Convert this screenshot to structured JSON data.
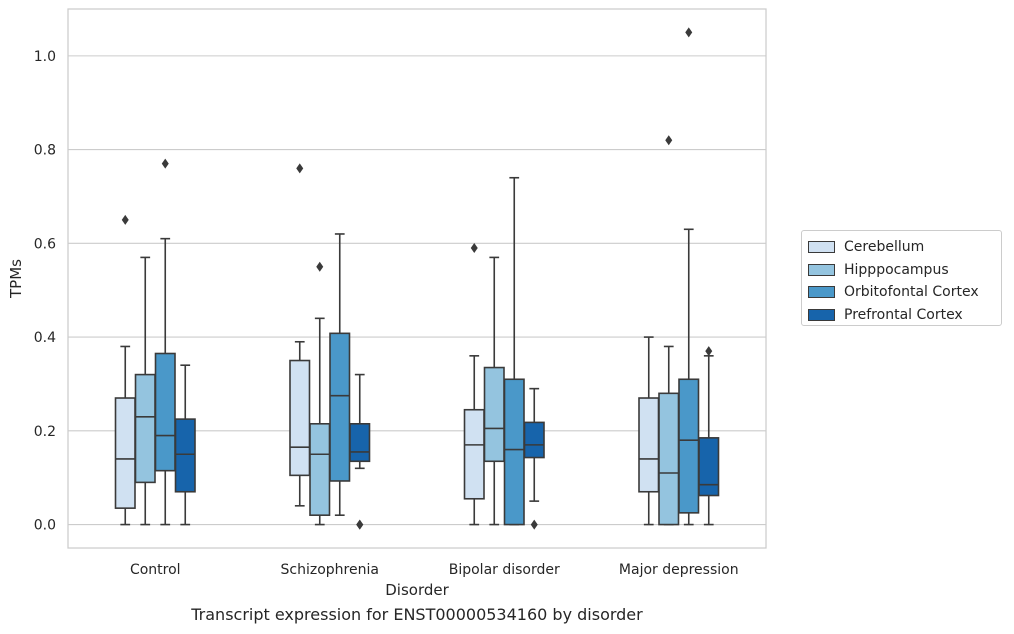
{
  "caption": "Transcript expression for ENST00000534160 by disorder",
  "colors": {
    "Cerebellum": "#d0e1f2",
    "Hipppocampus": "#94c4df",
    "Orbitofontal Cortex": "#4a98c9",
    "Prefrontal Cortex": "#1764ab"
  },
  "chart_data": {
    "type": "box",
    "title": "",
    "xlabel": "Disorder",
    "ylabel": "TPMs",
    "ylim": [
      -0.05,
      1.1
    ],
    "yticks": [
      0.0,
      0.2,
      0.4,
      0.6,
      0.8,
      1.0
    ],
    "ytick_labels": [
      "0.0",
      "0.2",
      "0.4",
      "0.6",
      "0.8",
      "1.0"
    ],
    "grid": "horizontal",
    "legend_position": "right",
    "categories": [
      "Control",
      "Schizophrenia",
      "Bipolar disorder",
      "Major depression"
    ],
    "series": [
      {
        "name": "Cerebellum",
        "boxes": [
          {
            "whislo": 0.0,
            "q1": 0.035,
            "med": 0.14,
            "q3": 0.27,
            "whishi": 0.38,
            "fliers": [
              0.65
            ]
          },
          {
            "whislo": 0.04,
            "q1": 0.105,
            "med": 0.165,
            "q3": 0.35,
            "whishi": 0.39,
            "fliers": [
              0.76
            ]
          },
          {
            "whislo": 0.0,
            "q1": 0.055,
            "med": 0.17,
            "q3": 0.245,
            "whishi": 0.36,
            "fliers": [
              0.59
            ]
          },
          {
            "whislo": 0.0,
            "q1": 0.07,
            "med": 0.14,
            "q3": 0.27,
            "whishi": 0.4,
            "fliers": []
          }
        ]
      },
      {
        "name": "Hipppocampus",
        "boxes": [
          {
            "whislo": 0.0,
            "q1": 0.09,
            "med": 0.23,
            "q3": 0.32,
            "whishi": 0.57,
            "fliers": []
          },
          {
            "whislo": 0.0,
            "q1": 0.02,
            "med": 0.15,
            "q3": 0.215,
            "whishi": 0.44,
            "fliers": [
              0.55
            ]
          },
          {
            "whislo": 0.0,
            "q1": 0.135,
            "med": 0.205,
            "q3": 0.335,
            "whishi": 0.57,
            "fliers": []
          },
          {
            "whislo": 0.0,
            "q1": 0.0,
            "med": 0.11,
            "q3": 0.28,
            "whishi": 0.38,
            "fliers": [
              0.82
            ]
          }
        ]
      },
      {
        "name": "Orbitofontal Cortex",
        "boxes": [
          {
            "whislo": 0.0,
            "q1": 0.115,
            "med": 0.19,
            "q3": 0.365,
            "whishi": 0.61,
            "fliers": [
              0.77
            ]
          },
          {
            "whislo": 0.02,
            "q1": 0.093,
            "med": 0.275,
            "q3": 0.408,
            "whishi": 0.62,
            "fliers": []
          },
          {
            "whislo": 0.0,
            "q1": 0.0,
            "med": 0.16,
            "q3": 0.31,
            "whishi": 0.74,
            "fliers": []
          },
          {
            "whislo": 0.0,
            "q1": 0.025,
            "med": 0.18,
            "q3": 0.31,
            "whishi": 0.63,
            "fliers": [
              1.05
            ]
          }
        ]
      },
      {
        "name": "Prefrontal Cortex",
        "boxes": [
          {
            "whislo": 0.0,
            "q1": 0.07,
            "med": 0.15,
            "q3": 0.225,
            "whishi": 0.34,
            "fliers": []
          },
          {
            "whislo": 0.12,
            "q1": 0.135,
            "med": 0.155,
            "q3": 0.215,
            "whishi": 0.32,
            "fliers": [
              0.0,
              0.0
            ]
          },
          {
            "whislo": 0.05,
            "q1": 0.143,
            "med": 0.17,
            "q3": 0.218,
            "whishi": 0.29,
            "fliers": [
              0.0
            ]
          },
          {
            "whislo": 0.0,
            "q1": 0.062,
            "med": 0.085,
            "q3": 0.185,
            "whishi": 0.36,
            "fliers": [
              0.37
            ]
          }
        ]
      }
    ]
  }
}
